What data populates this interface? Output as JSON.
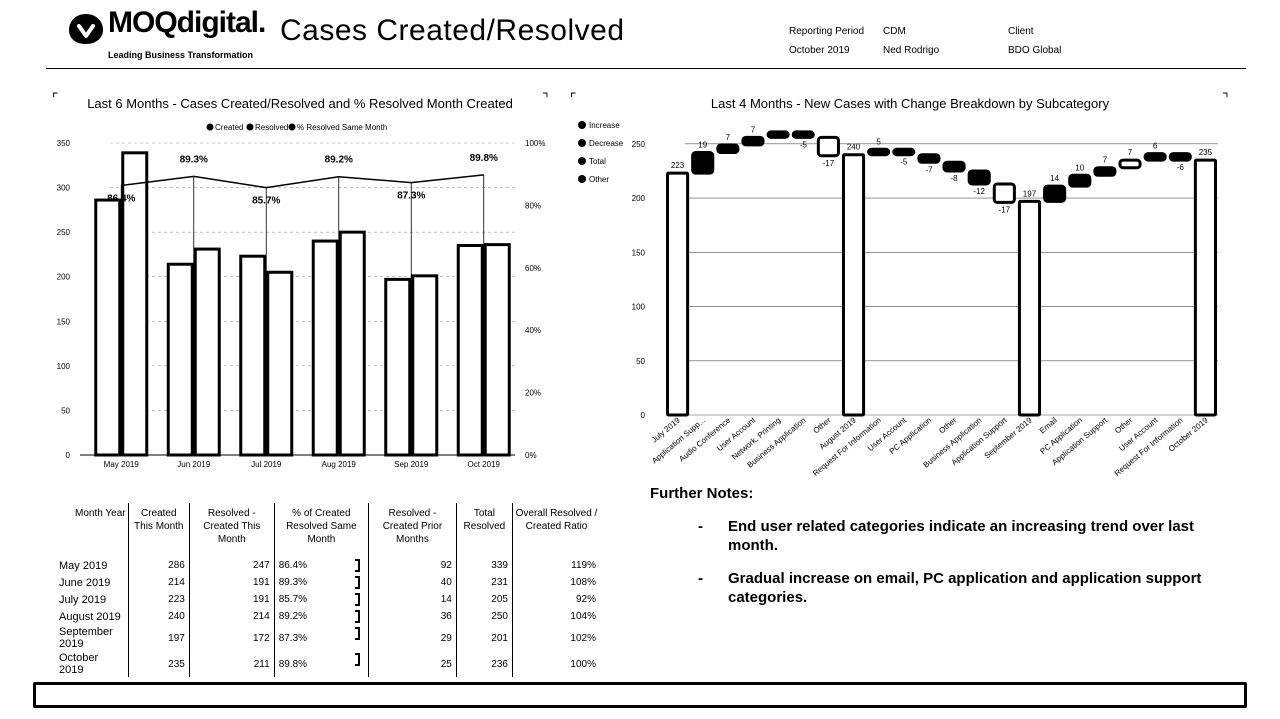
{
  "header": {
    "logo_text": "MOQdigital.",
    "logo_tagline": "Leading Business Transformation",
    "title": "Cases Created/Resolved",
    "meta": [
      {
        "label": "Reporting Period",
        "value": "October 2019"
      },
      {
        "label": "CDM",
        "value": "Ned Rodrigo"
      },
      {
        "label": "Client",
        "value": "BDO Global"
      }
    ]
  },
  "chart_data": [
    {
      "type": "bar",
      "title": "Last 6 Months - Cases Created/Resolved and % Resolved Month Created",
      "legend": [
        "Created",
        "Resolved",
        "% Resolved Same Month"
      ],
      "legend_position": "top",
      "categories": [
        "May 2019",
        "Jun 2019",
        "Jul 2019",
        "Aug 2019",
        "Sep 2019",
        "Oct 2019"
      ],
      "series": [
        {
          "name": "Created",
          "values": [
            286,
            214,
            223,
            240,
            197,
            235
          ]
        },
        {
          "name": "Resolved",
          "values": [
            339,
            231,
            205,
            250,
            201,
            236
          ]
        },
        {
          "name": "% Resolved Same Month",
          "type": "line",
          "values": [
            86.4,
            89.3,
            85.7,
            89.2,
            87.3,
            89.8
          ]
        }
      ],
      "data_labels": [
        "86.4%",
        "89.3%",
        "85.7%",
        "89.2%",
        "87.3%",
        "89.8%"
      ],
      "y_ticks": [
        "0",
        "50",
        "100",
        "150",
        "200",
        "250",
        "300",
        "350"
      ],
      "y2_ticks": [
        "0%",
        "20%",
        "40%",
        "60%",
        "80%",
        "100%"
      ],
      "ylim": [
        0,
        350
      ],
      "y2lim": [
        0,
        100
      ],
      "grid": true
    },
    {
      "type": "bar",
      "subtype": "waterfall",
      "title": "Last 4 Months - New Cases with Change Breakdown by Subcategory",
      "legend": [
        "Increase",
        "Decrease",
        "Total",
        "Other"
      ],
      "legend_position": "left",
      "ylim": [
        0,
        250
      ],
      "y_ticks": [
        "0",
        "50",
        "100",
        "150",
        "200",
        "250"
      ],
      "grid": true,
      "steps": [
        {
          "label": "July 2019",
          "kind": "total",
          "value": 223,
          "text": "223"
        },
        {
          "label": "Application Supp...",
          "kind": "increase",
          "value": 19,
          "text": "19"
        },
        {
          "label": "Audio Conference",
          "kind": "increase",
          "value": 7,
          "text": "7"
        },
        {
          "label": "User Account",
          "kind": "increase",
          "value": 7,
          "text": "7"
        },
        {
          "label": "Network, Printing",
          "kind": "increase",
          "value": 5,
          "text": ""
        },
        {
          "label": "Business Application",
          "kind": "decrease",
          "value": -5,
          "text": "-5"
        },
        {
          "label": "Other",
          "kind": "other",
          "value": -17,
          "text": "-17"
        },
        {
          "label": "August 2019",
          "kind": "total",
          "value": 240,
          "text": "240"
        },
        {
          "label": "Request For Information",
          "kind": "increase",
          "value": 5,
          "text": "5"
        },
        {
          "label": "User Account",
          "kind": "decrease",
          "value": -5,
          "text": "-5"
        },
        {
          "label": "PC Application",
          "kind": "decrease",
          "value": -7,
          "text": "-7"
        },
        {
          "label": "Other",
          "kind": "decrease",
          "value": -8,
          "text": "-8"
        },
        {
          "label": "Business Application",
          "kind": "decrease",
          "value": -12,
          "text": "-12"
        },
        {
          "label": "Application Support",
          "kind": "other",
          "value": -17,
          "text": "-17"
        },
        {
          "label": "September 2019",
          "kind": "total",
          "value": 197,
          "text": "197"
        },
        {
          "label": "Email",
          "kind": "increase",
          "value": 14,
          "text": "14"
        },
        {
          "label": "PC Application",
          "kind": "increase",
          "value": 10,
          "text": "10"
        },
        {
          "label": "Application Support",
          "kind": "increase",
          "value": 7,
          "text": "7"
        },
        {
          "label": "Other",
          "kind": "other",
          "value": 7,
          "text": "7"
        },
        {
          "label": "User Account",
          "kind": "increase",
          "value": 6,
          "text": "6"
        },
        {
          "label": "Request For Information",
          "kind": "decrease",
          "value": -6,
          "text": "-6"
        },
        {
          "label": "October 2019",
          "kind": "total",
          "value": 235,
          "text": "235"
        }
      ]
    }
  ],
  "table": {
    "headers": [
      "Month Year",
      "Created This Month",
      "Resolved - Created This Month",
      "% of Created Resolved Same Month",
      "Resolved - Created Prior Months",
      "Total Resolved",
      "Overall Resolved / Created Ratio"
    ],
    "rows": [
      [
        "May 2019",
        "286",
        "247",
        "86.4%",
        "92",
        "339",
        "119%"
      ],
      [
        "June 2019",
        "214",
        "191",
        "89.3%",
        "40",
        "231",
        "108%"
      ],
      [
        "July 2019",
        "223",
        "191",
        "85.7%",
        "14",
        "205",
        "92%"
      ],
      [
        "August 2019",
        "240",
        "214",
        "89.2%",
        "36",
        "250",
        "104%"
      ],
      [
        "September 2019",
        "197",
        "172",
        "87.3%",
        "29",
        "201",
        "102%"
      ],
      [
        "October 2019",
        "235",
        "211",
        "89.8%",
        "25",
        "236",
        "100%"
      ]
    ]
  },
  "notes": {
    "title": "Further Notes:",
    "items": [
      "End user related categories indicate an increasing trend over last month.",
      "Gradual increase on email, PC application and application support categories."
    ]
  }
}
